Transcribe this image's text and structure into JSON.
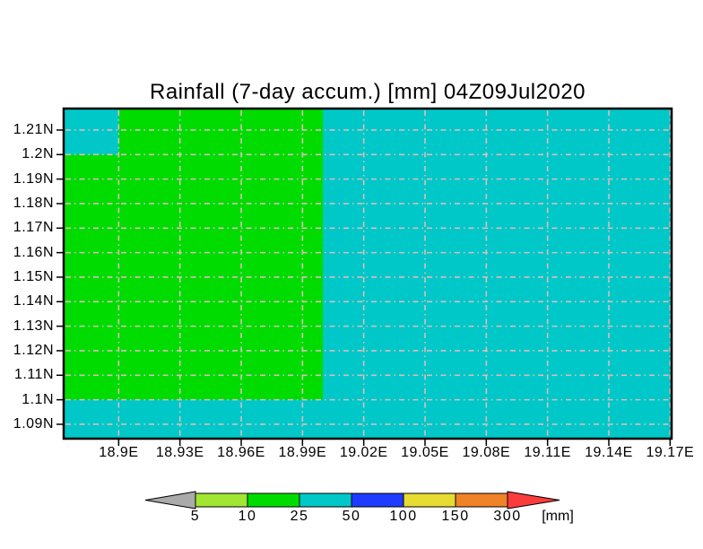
{
  "page": {
    "background": "#FFFFFF"
  },
  "title": "Rainfall (7-day accum.) [mm] 04Z09Jul2020",
  "chart_data": {
    "type": "heatmap",
    "title": "Rainfall (7-day accum.) [mm] 04Z09Jul2020",
    "variable": "Rainfall (7-day accum.)",
    "unit": "mm",
    "valid_time": "04Z09Jul2020",
    "x_axis": {
      "range": [
        18.8735,
        19.1703
      ],
      "ticks": [
        {
          "value": 18.9,
          "label": "18.9E"
        },
        {
          "value": 18.93,
          "label": "18.93E"
        },
        {
          "value": 18.96,
          "label": "18.96E"
        },
        {
          "value": 18.99,
          "label": "18.99E"
        },
        {
          "value": 19.02,
          "label": "19.02E"
        },
        {
          "value": 19.05,
          "label": "19.05E"
        },
        {
          "value": 19.08,
          "label": "19.08E"
        },
        {
          "value": 19.11,
          "label": "19.11E"
        },
        {
          "value": 19.14,
          "label": "19.14E"
        },
        {
          "value": 19.17,
          "label": "19.17E"
        }
      ]
    },
    "y_axis": {
      "range": [
        1.0845,
        1.2184
      ],
      "ticks": [
        {
          "value": 1.21,
          "label": "1.21N"
        },
        {
          "value": 1.2,
          "label": "1.2N"
        },
        {
          "value": 1.19,
          "label": "1.19N"
        },
        {
          "value": 1.18,
          "label": "1.18N"
        },
        {
          "value": 1.17,
          "label": "1.17N"
        },
        {
          "value": 1.16,
          "label": "1.16N"
        },
        {
          "value": 1.15,
          "label": "1.15N"
        },
        {
          "value": 1.14,
          "label": "1.14N"
        },
        {
          "value": 1.13,
          "label": "1.13N"
        },
        {
          "value": 1.12,
          "label": "1.12N"
        },
        {
          "value": 1.11,
          "label": "1.11N"
        },
        {
          "value": 1.1,
          "label": "1.1N"
        },
        {
          "value": 1.09,
          "label": "1.09N"
        }
      ]
    },
    "grid": {
      "show": true,
      "color": "#DCBCBC",
      "style": "dash-dot"
    },
    "frame_color": "#000000",
    "regions": [
      {
        "value_mm": "25-50",
        "color": "#00C8C8",
        "lon": [
          18.8735,
          19.1703
        ],
        "lat": [
          1.0845,
          1.2184
        ]
      },
      {
        "value_mm": "10-25",
        "color": "#00DC00",
        "lon": [
          18.8735,
          19.0
        ],
        "lat": [
          1.1,
          1.2184
        ]
      },
      {
        "value_mm": "25-50",
        "color": "#00C8C8",
        "lon": [
          18.8735,
          18.9
        ],
        "lat": [
          1.2,
          1.2184
        ]
      }
    ],
    "colorbar": {
      "levels": [
        "5",
        "10",
        "25",
        "50",
        "100",
        "150",
        "300"
      ],
      "unit_label": "[mm]",
      "segments": [
        {
          "range_mm": "<5",
          "color": "#AAAAAA"
        },
        {
          "range_mm": "5-10",
          "color": "#A0E632"
        },
        {
          "range_mm": "10-25",
          "color": "#00DC00"
        },
        {
          "range_mm": "25-50",
          "color": "#00C8C8"
        },
        {
          "range_mm": "50-100",
          "color": "#1E3CFF"
        },
        {
          "range_mm": "100-150",
          "color": "#E6DC32"
        },
        {
          "range_mm": "150-300",
          "color": "#F08228"
        },
        {
          "range_mm": ">300",
          "color": "#FA3C3C"
        }
      ]
    }
  }
}
